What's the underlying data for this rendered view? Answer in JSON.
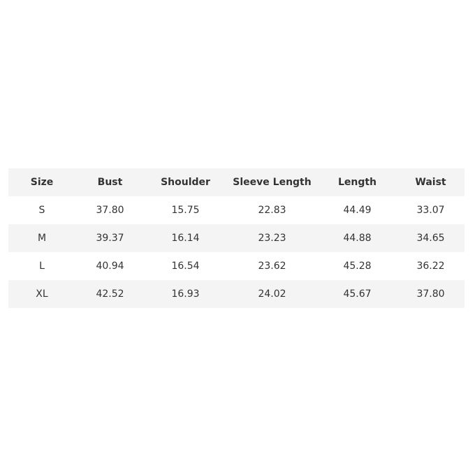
{
  "table": {
    "headers": [
      "Size",
      "Bust",
      "Shoulder",
      "Sleeve Length",
      "Length",
      "Waist"
    ],
    "rows": [
      [
        "S",
        "37.80",
        "15.75",
        "22.83",
        "44.49",
        "33.07"
      ],
      [
        "M",
        "39.37",
        "16.14",
        "23.23",
        "44.88",
        "34.65"
      ],
      [
        "L",
        "40.94",
        "16.54",
        "23.62",
        "45.28",
        "36.22"
      ],
      [
        "XL",
        "42.52",
        "16.93",
        "24.02",
        "45.67",
        "37.80"
      ]
    ],
    "stripe_color": "#f4f4f4"
  }
}
